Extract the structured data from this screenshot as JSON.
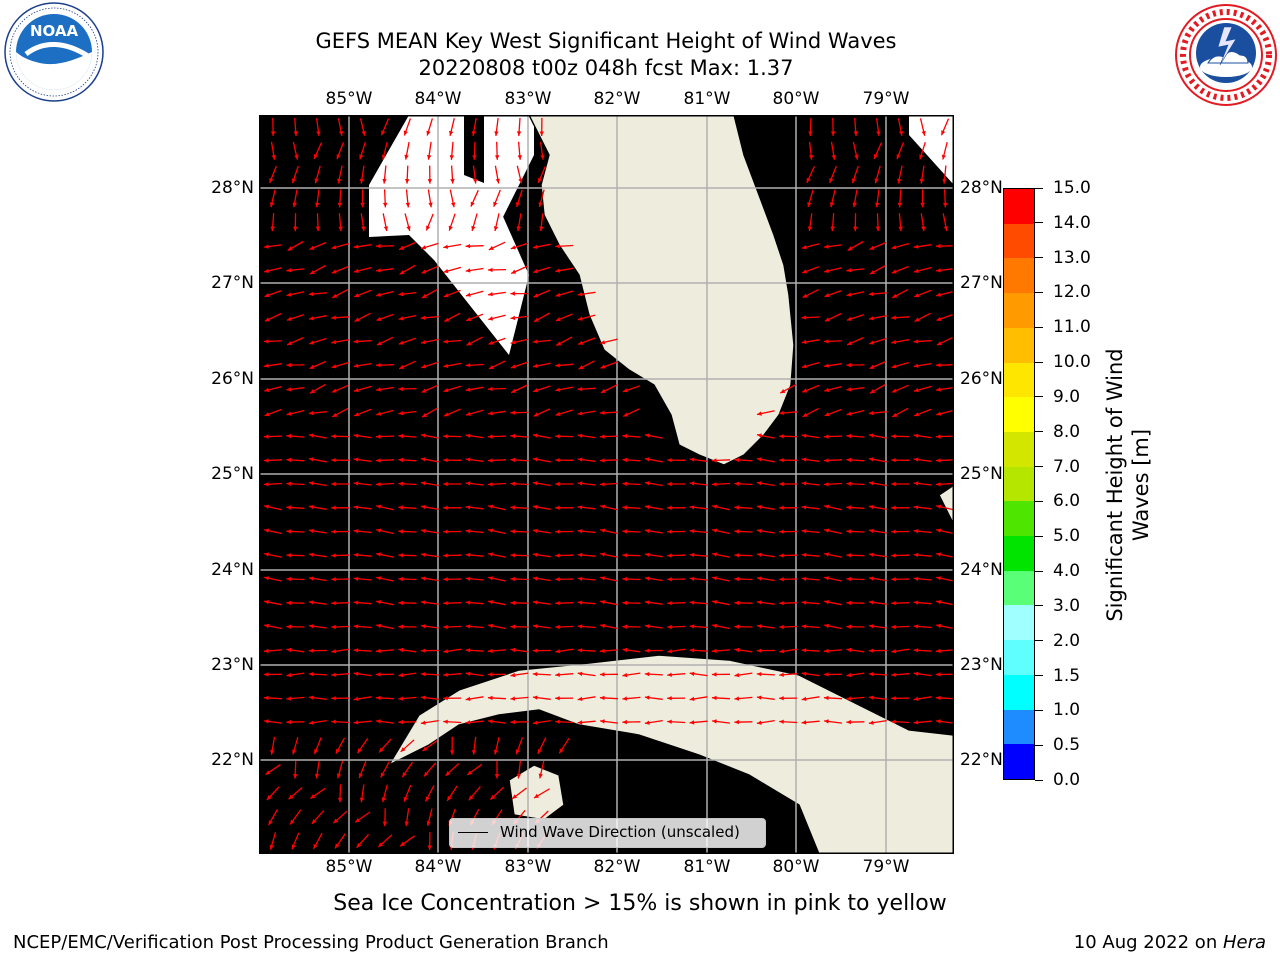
{
  "title": {
    "line1": "GEFS MEAN Key West Significant Height of Wind Waves",
    "line2": "20220808 t00z 048h fcst   Max: 1.37"
  },
  "map": {
    "lon_ticks": [
      "85°W",
      "84°W",
      "83°W",
      "82°W",
      "81°W",
      "80°W",
      "79°W"
    ],
    "lat_ticks": [
      "28°N",
      "27°N",
      "26°N",
      "25°N",
      "24°N",
      "23°N",
      "22°N"
    ],
    "legend_label": "Wind Wave Direction (unscaled)",
    "arrow_color": "#ff0000",
    "land_color": "#eeecdc",
    "grid_color": "#b0b0b0"
  },
  "colorbar": {
    "label": "Significant Height of Wind Waves [m]",
    "label_line1": "Significant Height of Wind",
    "label_line2": "Waves [m]",
    "ticks": [
      "15.0",
      "14.0",
      "13.0",
      "12.0",
      "11.0",
      "10.0",
      "9.0",
      "8.0",
      "7.0",
      "6.0",
      "5.0",
      "4.0",
      "3.0",
      "2.0",
      "1.5",
      "1.0",
      "0.5",
      "0.0"
    ],
    "colors_bottom_to_top": [
      "#0000ff",
      "#1e8cff",
      "#00ffff",
      "#60ffff",
      "#a0ffff",
      "#5aff78",
      "#00e400",
      "#4ee600",
      "#b4e600",
      "#d2e600",
      "#ffff00",
      "#ffe600",
      "#ffbe00",
      "#ff9b00",
      "#ff7800",
      "#ff4b00",
      "#ff0000"
    ]
  },
  "note": "Sea Ice Concentration > 15% is shown in pink to yellow",
  "footer": {
    "left": "NCEP/EMC/Verification Post Processing Product Generation Branch",
    "date": "10 Aug 2022 on ",
    "machine": "Hera"
  },
  "logos": {
    "noaa_text": "NOAA",
    "noaa_ring": "NATIONAL OCEANIC AND ATMOSPHERIC ADMINISTRATION · U.S. DEPARTMENT OF COMMERCE",
    "nws_ring": "NATIONAL WEATHER SERVICE"
  },
  "wave_colors": {
    "band_0_0.5": "#0000ff",
    "band_0.5_1.0": "#1e8cff",
    "band_1.0_1.5": "#00ffff",
    "band_1.5_2.0": "#60ffff"
  }
}
